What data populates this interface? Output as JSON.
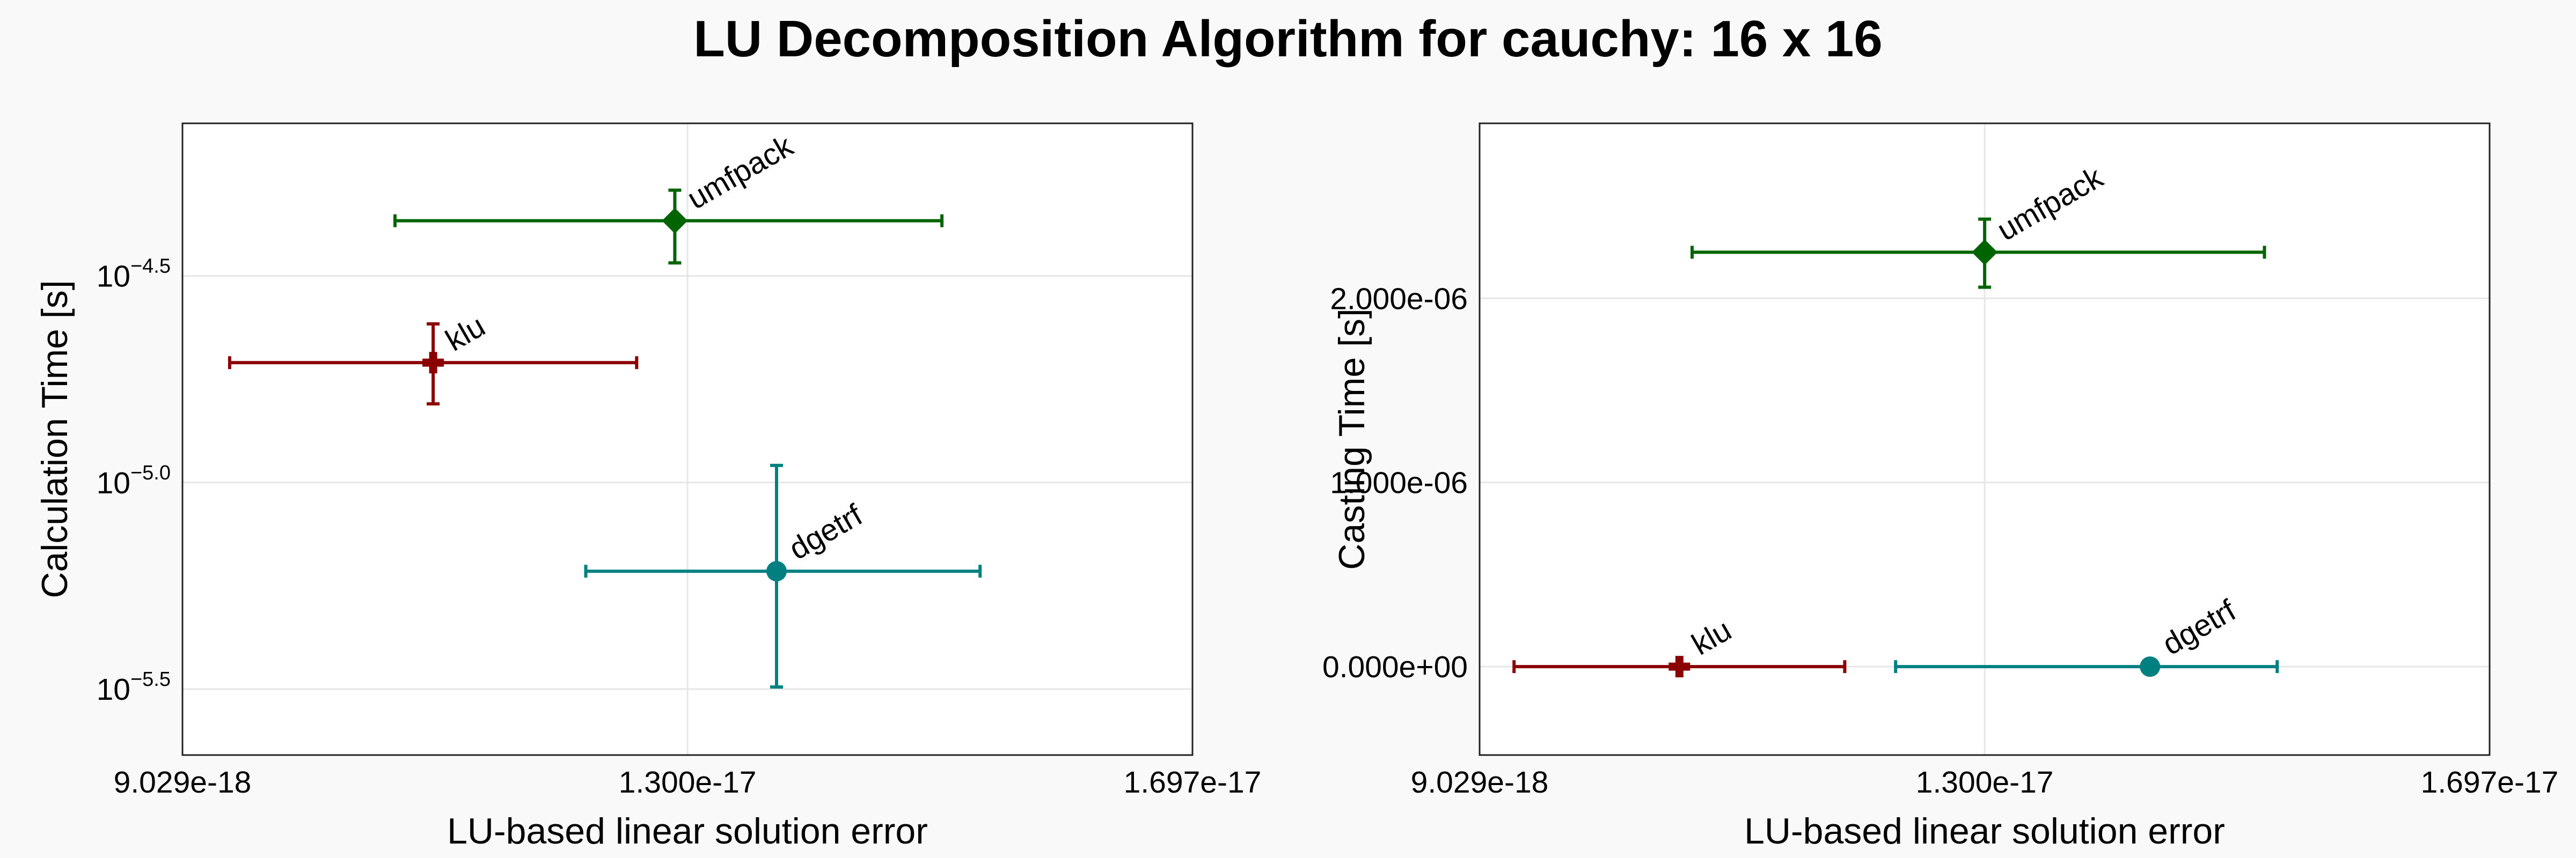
{
  "title": "LU Decomposition Algorithm for cauchy: 16 x 16",
  "chart_data": [
    {
      "type": "scatter",
      "title": "",
      "xlabel": "LU-based linear solution error",
      "ylabel": "Calculation Time [s]",
      "xscale": "linear",
      "yscale": "log",
      "xlim": [
        9.029e-18,
        1.697e-17
      ],
      "ylim": [
        2.19e-06,
        7.4e-05
      ],
      "xticks": [
        9.029e-18,
        1.3e-17,
        1.697e-17
      ],
      "xtick_labels": [
        "9.029e-18",
        "1.300e-17",
        "1.697e-17"
      ],
      "yticks": [
        3.1623e-05,
        1e-05,
        3.1623e-06
      ],
      "ytick_labels": [
        {
          "base": "10",
          "exp": "−4.5"
        },
        {
          "base": "10",
          "exp": "−5.0"
        },
        {
          "base": "10",
          "exp": "−5.5"
        }
      ],
      "grid": true,
      "series": [
        {
          "name": "klu",
          "color": "#8b0000",
          "marker": "cross",
          "x": 1.1e-17,
          "y": 1.95e-05,
          "xerr": [
            9.4e-18,
            1.26e-17
          ],
          "yerr": [
            1.55e-05,
            2.42e-05
          ]
        },
        {
          "name": "umfpack",
          "color": "#006400",
          "marker": "diamond",
          "x": 1.29e-17,
          "y": 4.3e-05,
          "xerr": [
            1.07e-17,
            1.5e-17
          ],
          "yerr": [
            3.4e-05,
            5.1e-05
          ]
        },
        {
          "name": "dgetrf",
          "color": "#008080",
          "marker": "circle",
          "x": 1.37e-17,
          "y": 6.1e-06,
          "xerr": [
            1.22e-17,
            1.53e-17
          ],
          "yerr": [
            3.2e-06,
            1.1e-05
          ]
        }
      ]
    },
    {
      "type": "scatter",
      "title": "",
      "xlabel": "LU-based linear solution error",
      "ylabel": "Casting Time [s]",
      "xscale": "linear",
      "yscale": "linear",
      "xlim": [
        9.029e-18,
        1.697e-17
      ],
      "ylim": [
        -4.8e-07,
        2.95e-06
      ],
      "xticks": [
        9.029e-18,
        1.3e-17,
        1.697e-17
      ],
      "xtick_labels": [
        "9.029e-18",
        "1.300e-17",
        "1.697e-17"
      ],
      "yticks": [
        2e-06,
        1e-06,
        0
      ],
      "ytick_labels": [
        "2.000e-06",
        "1.000e-06",
        "0.000e+00"
      ],
      "grid": true,
      "series": [
        {
          "name": "klu",
          "color": "#8b0000",
          "marker": "cross",
          "x": 1.06e-17,
          "y": 0,
          "xerr": [
            9.3e-18,
            1.19e-17
          ],
          "yerr": [
            0,
            0
          ]
        },
        {
          "name": "umfpack",
          "color": "#006400",
          "marker": "diamond",
          "x": 1.3e-17,
          "y": 2.25e-06,
          "xerr": [
            1.07e-17,
            1.52e-17
          ],
          "yerr": [
            2.06e-06,
            2.43e-06
          ]
        },
        {
          "name": "dgetrf",
          "color": "#008080",
          "marker": "circle",
          "x": 1.43e-17,
          "y": 0,
          "xerr": [
            1.23e-17,
            1.53e-17
          ],
          "yerr": [
            0,
            0
          ]
        }
      ]
    }
  ]
}
